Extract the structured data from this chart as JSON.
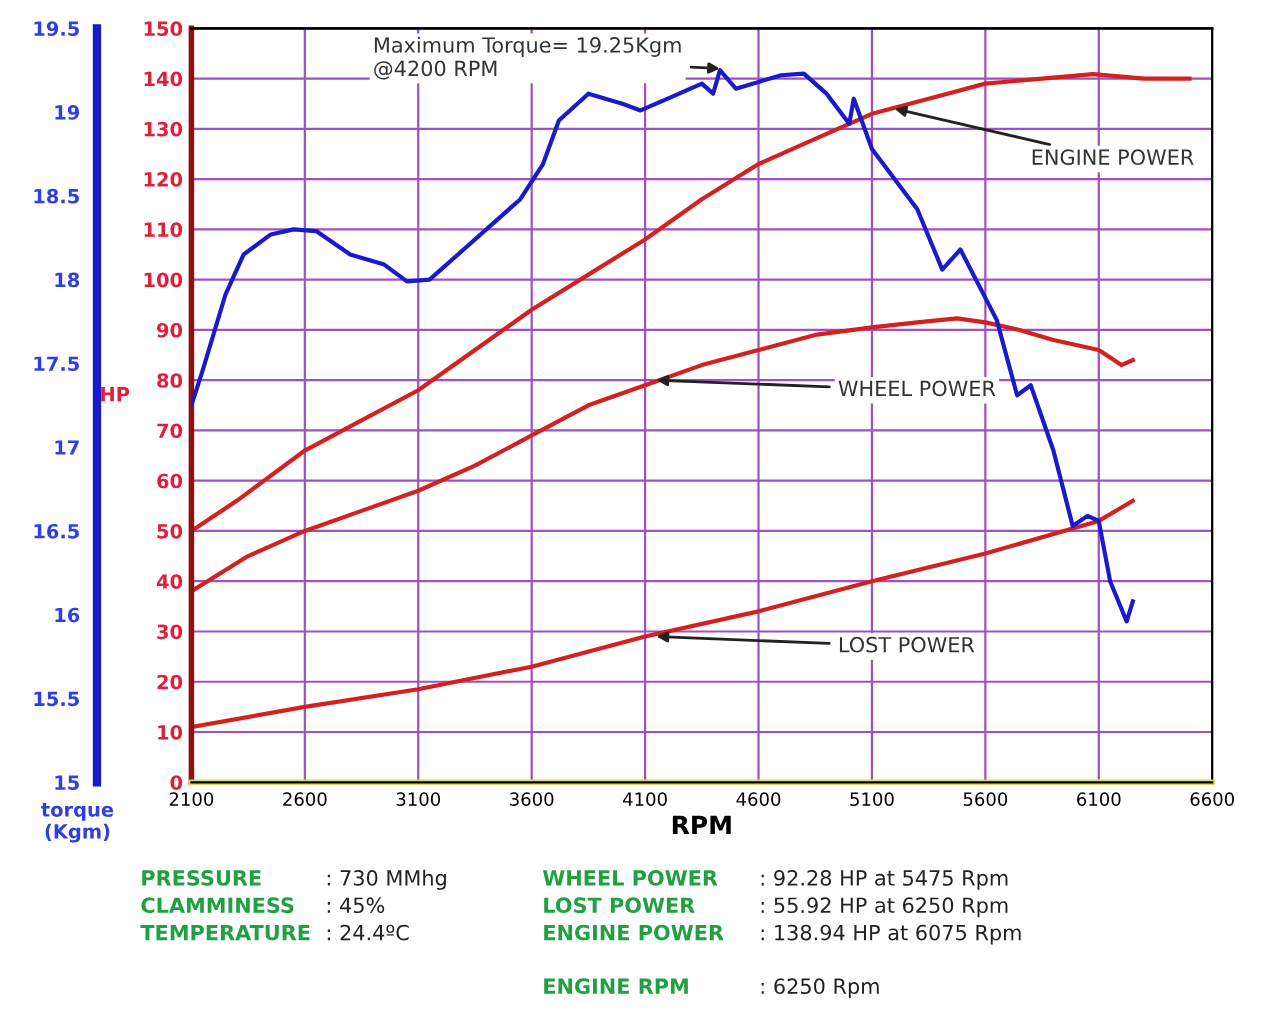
{
  "chart_data": {
    "type": "line",
    "xlabel": "RPM",
    "ylabel": "HP",
    "y2label": "torque\n(Kgm)",
    "xlim": [
      2100,
      6600
    ],
    "xticks": [
      2100,
      2600,
      3100,
      3600,
      4100,
      4600,
      5100,
      5600,
      6100,
      6600
    ],
    "ylim": [
      0,
      150
    ],
    "yticks": [
      0,
      10,
      20,
      30,
      40,
      50,
      60,
      70,
      80,
      90,
      100,
      110,
      120,
      130,
      140,
      150
    ],
    "y2lim": [
      15,
      19.5
    ],
    "y2ticks": [
      15,
      15.5,
      16,
      16.5,
      17,
      17.5,
      18,
      18.5,
      19,
      19.5
    ],
    "grid": true,
    "line_style": "solid",
    "marker": "none",
    "series": [
      {
        "color": "#d42020",
        "x": [
          2100,
          2300,
          2600,
          2850,
          3100,
          3350,
          3600,
          3850,
          4100,
          4350,
          4600,
          4850,
          5100,
          5350,
          5600,
          5850,
          6075,
          6300,
          6500
        ],
        "values": [
          50,
          56,
          66,
          72,
          78,
          86,
          94,
          101,
          108,
          116,
          123,
          128,
          133,
          136,
          139,
          140,
          140.9,
          140,
          140
        ]
      },
      {
        "color": "#d42020",
        "x": [
          2100,
          2350,
          2600,
          2850,
          3100,
          3350,
          3600,
          3850,
          4100,
          4350,
          4600,
          4850,
          5100,
          5300,
          5475,
          5600,
          5750,
          5900,
          6000,
          6100,
          6200,
          6250
        ],
        "values": [
          38,
          45,
          50,
          54,
          58,
          63,
          69,
          75,
          79,
          83,
          86,
          89,
          90.5,
          91.5,
          92.3,
          91.5,
          90,
          88,
          87,
          86,
          83,
          84
        ]
      },
      {
        "color": "#d42020",
        "x": [
          2100,
          2600,
          3100,
          3600,
          4100,
          4600,
          5100,
          5600,
          6100,
          6250
        ],
        "values": [
          11,
          15,
          18.5,
          23,
          29,
          34,
          40,
          45.5,
          52,
          56
        ]
      },
      {
        "color": "#1a1acc",
        "axis": "y2",
        "x": [
          2100,
          2150,
          2250,
          2330,
          2450,
          2550,
          2650,
          2800,
          2950,
          3050,
          3150,
          3300,
          3450,
          3550,
          3650,
          3720,
          3850,
          4000,
          4080,
          4200,
          4350,
          4400,
          4430,
          4500,
          4700,
          4800,
          4900,
          5000,
          5020,
          5100,
          5300,
          5410,
          5490,
          5650,
          5740,
          5800,
          5900,
          5985,
          6050,
          6100,
          6150,
          6223,
          6250
        ],
        "values": [
          17.25,
          17.46,
          17.91,
          18.15,
          18.27,
          18.3,
          18.29,
          18.15,
          18.09,
          17.99,
          18.0,
          18.18,
          18.36,
          18.48,
          18.69,
          18.95,
          19.11,
          19.05,
          19.01,
          19.08,
          19.17,
          19.11,
          19.25,
          19.14,
          19.22,
          19.23,
          19.11,
          18.93,
          19.08,
          18.78,
          18.42,
          18.06,
          18.18,
          17.76,
          17.31,
          17.37,
          16.98,
          16.53,
          16.59,
          16.56,
          16.2,
          15.96,
          16.08
        ]
      }
    ],
    "annotations": [
      {
        "text": "Maximum Torque= 19.25Kgm\n@4200 RPM",
        "x": 4430,
        "y": 142
      },
      {
        "text": "ENGINE POWER",
        "x": 5200,
        "y": 134
      },
      {
        "text": "WHEEL POWER",
        "x": 4150,
        "y": 80
      },
      {
        "text": "LOST POWER",
        "x": 4150,
        "y": 29
      },
      "PRESSURE : 730 MMhg",
      "CLAMMINESS : 45%",
      "TEMPERATURE: 24.4ºC",
      "WHEEL POWER : 92.28 HP at 5475 Rpm",
      "LOST POWER : 55.92 HP at 6250 Rpm",
      "ENGINE POWER : 138.94 HP at 6075 Rpm",
      "ENGINE RPM : 6250 Rpm"
    ]
  }
}
